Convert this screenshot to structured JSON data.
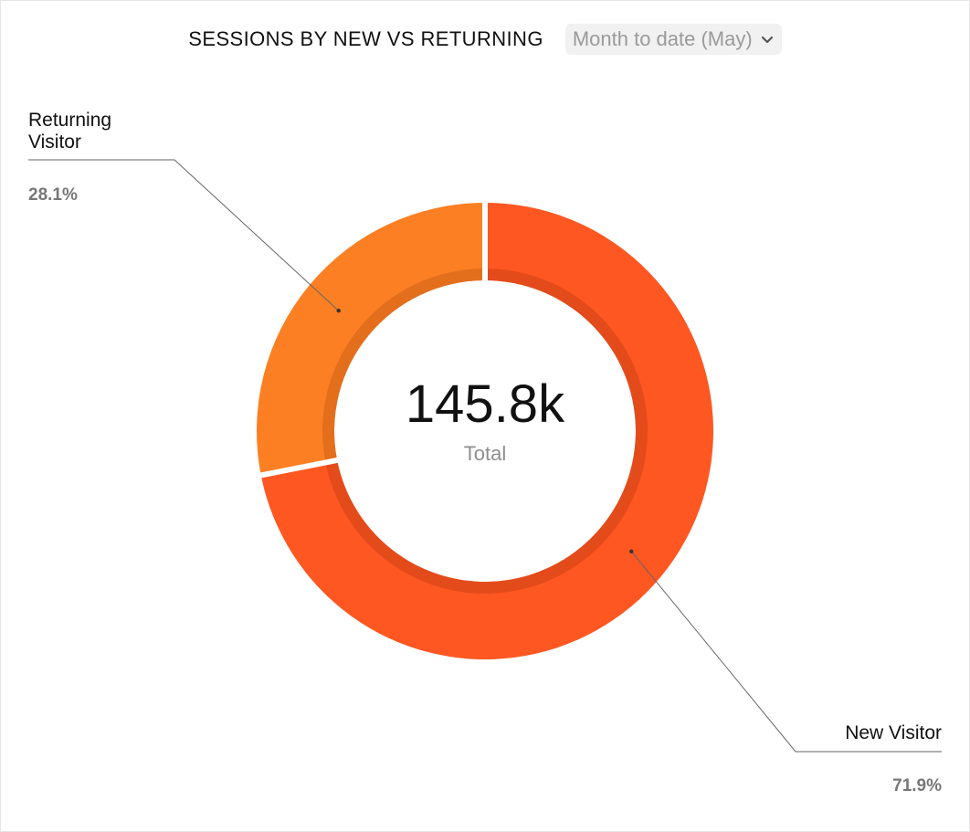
{
  "header": {
    "title": "SESSIONS BY NEW VS RETURNING",
    "period_label": "Month to date (May)"
  },
  "center": {
    "value": "145.8k",
    "label": "Total"
  },
  "labels": {
    "returning": {
      "name": "Returning Visitor",
      "pct": "28.1%"
    },
    "new": {
      "name": "New Visitor",
      "pct": "71.9%"
    }
  },
  "colors": {
    "new_visitor": "#ff5722",
    "returning_visitor": "#fd7f23",
    "new_inner_shade": "#e44b1b",
    "returning_inner_shade": "#e36f1d"
  },
  "chart_data": {
    "type": "pie",
    "title": "SESSIONS BY NEW VS RETURNING",
    "total": "145.8k",
    "slices": [
      {
        "name": "New Visitor",
        "value": 71.9
      },
      {
        "name": "Returning Visitor",
        "value": 28.1
      }
    ]
  }
}
